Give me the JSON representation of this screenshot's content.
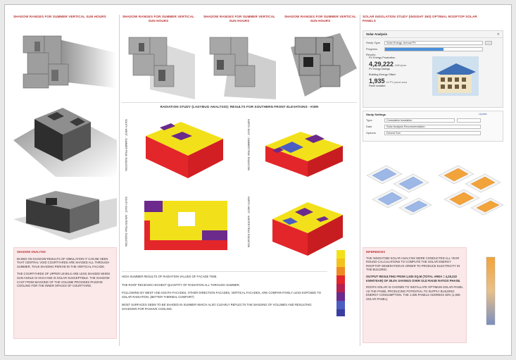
{
  "colors": {
    "title_red": "#b33333",
    "yellow": "#f2e11a",
    "red": "#e3262a",
    "purple": "#6b2a8c",
    "blue": "#4c5dc2",
    "panel_pink": "#fbe9ea",
    "solar_blue": "#9db8e6",
    "solar_orange": "#f2a33a"
  },
  "col1": {
    "header": "SHADOW RANGES FOR SUMMER VERTICAL SUN HOURS",
    "analysis_title": "SHADOW ANALYSIS",
    "analysis_p1": "BASED ON SHADOW RESULTS OF SIMULATION IT CAN BE SEEN THAT CENTRAL VOID COURTYARDS ARE SHADED ALL THROUGH SUMMER, THUS SHADING PERIOD IN THE VERTICAL FACADE.",
    "analysis_p2": "THE COURTYARDS OF UPPER LEVELS ARE LESS SHADED WHEN SUN ANGLE IS HIGH AND IS SOLAR SUSCEPTIBLE. THE SHADOW CAST FROM MASSING OF THE VOLUME PROVIDES PASSIVE COOLING FOR THE INNER SPACES OF COURTYARD."
  },
  "col2": {
    "header1": "SHADOW RANGES FOR SUMMER VERTICAL SUN HOURS",
    "header2": "SHADOW RANGES FOR SUMMER VERTICAL SUN HOURS",
    "header3": "SHADOW RANGES FOR SUMMER VERTICAL SUN HOURS",
    "radiation_title": "RADIATION STUDY (LADYBUG ANALYSIS): RESULTS FOR SOUTHERN FRONT ELEVATIONS - KWH",
    "side_labels": [
      "SOUTH WEST - SUMMER PEAK RADIATION",
      "NORTH EAST - SUMMER PEAK RADIATION",
      "SOUTH EAST - WINTER PEAK RADIATION",
      "NORTH WEST - WINTER PEAK RADIATION"
    ],
    "notes": [
      "HIGH SUMMER RESULTS OF RADIATION VALUES OF FACADE TIME.",
      "THE ROOF RECEIVES HIGHEST QUANTITY OF RADIATION ALL THROUGH SUMMER.",
      "FOLLOWING BY WEST AND SOUTH FACADES, OTHER DIRECTION FACADES, VERTICAL FACADES, ARE COMPARATIVELY LESS EXPOSED TO SOLAR RADIATION. (BETTER THERMAL COMFORT)",
      "MOST SURFACES SEEM TO BE SHADED IN SUMMER WHICH ALSO CLEARLY REFLECTS THE MASSING OF VOLUMES AND RESULTING SHADOWS FOR PASSIVE COOLING."
    ],
    "legend_values": [
      "",
      "",
      "",
      "",
      "",
      "",
      "",
      ""
    ]
  },
  "col3": {
    "header": "SOLAR INSOLATION STUDY (INSIGHT 360) OPTIMAL ROOFTOP SOLAR PANELS",
    "panel": {
      "title": "Solar Analysis",
      "study_type_label": "Study Type",
      "study_type_value": "Solar Energy: Annual PV",
      "progress_label": "Progress",
      "results_label": "Results",
      "annual_energy_label": "PV Energy Production",
      "annual_energy_value": "4,29,222",
      "annual_energy_unit": "kWh/year",
      "sub1": "PV energy savings",
      "annual_use_label": "Building Energy Offset",
      "annual_use_value": "1,935",
      "annual_use_unit": "m² PV panel area",
      "sub2": "Panel installed",
      "settings_label": "Study Settings",
      "type_label": "Type",
      "type_value": "Cumulative Insolation",
      "date_label": "Date",
      "date_value": "Solar Analysis Recommendation",
      "options_label": "Options",
      "options_value": "Decent Sun",
      "update_label": "Update"
    },
    "inference_title": "INFERENCES",
    "inference_p1": "THE INSIGHT360 SOLAR ANALYSIS WERE CONDUCTED ALL YEAR ROUND CALCULATIONS TO COMPUTE THE SOLAR ENERGY ROOFTOP GENERATION IN ORDER TO PRODUCE ELECTRICITY IN THE BUILDING.",
    "inference_p2": "OUTPUT RESULTING FROM 1,935 SQ.M (TOTAL AREA = 4,29,222 KWH/YEAR) OF 38.4% SAVINGS OVER OLD RAISE RATIOS PHASE.",
    "inference_p3": "ROOFS SOLAR IS CHOSEN TO INSTALLATE OPTIMUM SOLAR PANEL AS THE PANEL PRODUCING POTENTIAL TO SUPPLY BUILDING ENERGY CONSUMPTION. THE 1,935 PANELS ADDRESS 38% (1,935 SOLAR PANEL).",
    "scale_top": "",
    "scale_bottom": ""
  }
}
